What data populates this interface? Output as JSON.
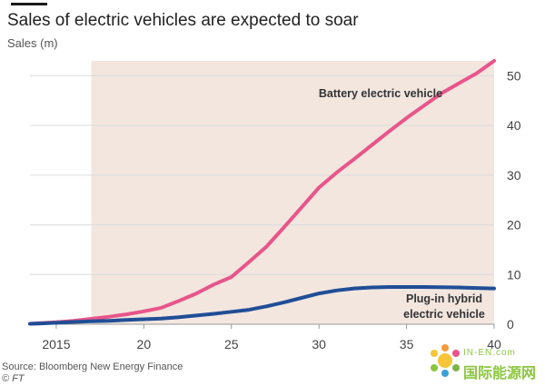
{
  "header": {
    "title": "Sales of electric vehicles are expected to soar",
    "ylabel": "Sales (m)"
  },
  "footer": {
    "source": "Source: Bloomberg New Energy Finance",
    "copyright": "© FT"
  },
  "watermark": {
    "top": "IN-EN.com",
    "main": "国际能源网"
  },
  "colors": {
    "bev": "#e8558a",
    "phev": "#1f4e96",
    "shade": "#f2e6df",
    "grid": "#dcdcdc",
    "tick": "#444444"
  },
  "chart_data": {
    "type": "line",
    "title": "Sales of electric vehicles are expected to soar",
    "ylabel": "Sales (m)",
    "xlim": [
      2013.5,
      2040
    ],
    "ylim": [
      0,
      53
    ],
    "xticks": [
      2015,
      2020,
      2025,
      2030,
      2035,
      2040
    ],
    "xtick_labels": [
      "2015",
      "20",
      "25",
      "30",
      "35",
      "40"
    ],
    "yticks": [
      0,
      10,
      20,
      30,
      40,
      50
    ],
    "ytick_labels": [
      "0",
      "10",
      "20",
      "30",
      "40",
      "50"
    ],
    "forecast_start": 2017,
    "grid": true,
    "y_axis_side": "right",
    "series": [
      {
        "name": "Battery electric vehicle",
        "color_key": "bev",
        "x": [
          2013.5,
          2014,
          2015,
          2016,
          2017,
          2018,
          2019,
          2020,
          2021,
          2022,
          2023,
          2024,
          2025,
          2026,
          2027,
          2028,
          2029,
          2030,
          2031,
          2032,
          2033,
          2034,
          2035,
          2036,
          2037,
          2038,
          2039,
          2040
        ],
        "values": [
          0.1,
          0.2,
          0.4,
          0.7,
          1.1,
          1.5,
          2.0,
          2.6,
          3.3,
          4.7,
          6.2,
          8.0,
          9.5,
          12.5,
          15.6,
          19.5,
          23.5,
          27.5,
          30.5,
          33.2,
          36.0,
          38.8,
          41.5,
          44.0,
          46.5,
          48.5,
          50.5,
          53.0
        ]
      },
      {
        "name": "Plug-in hybrid electric vehicle",
        "color_key": "phev",
        "x": [
          2013.5,
          2014,
          2015,
          2016,
          2017,
          2018,
          2019,
          2020,
          2021,
          2022,
          2023,
          2024,
          2025,
          2026,
          2027,
          2028,
          2029,
          2030,
          2031,
          2032,
          2033,
          2034,
          2035,
          2036,
          2037,
          2038,
          2039,
          2040
        ],
        "values": [
          0.1,
          0.15,
          0.3,
          0.45,
          0.6,
          0.7,
          0.85,
          1.0,
          1.15,
          1.4,
          1.75,
          2.1,
          2.5,
          2.9,
          3.6,
          4.4,
          5.3,
          6.2,
          6.8,
          7.2,
          7.4,
          7.5,
          7.5,
          7.5,
          7.45,
          7.4,
          7.3,
          7.2
        ]
      }
    ],
    "annotations": [
      {
        "text": "Battery electric vehicle",
        "series": 0
      },
      {
        "text": "Plug-in hybrid",
        "series": 1
      },
      {
        "text": "electric vehicle",
        "series": 1
      }
    ]
  }
}
